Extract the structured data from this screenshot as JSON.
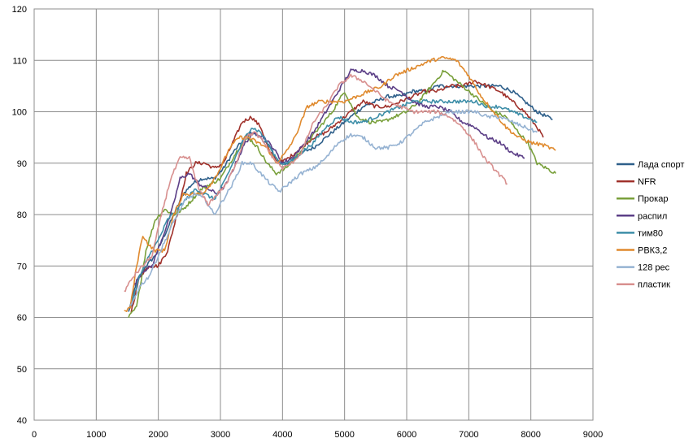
{
  "chart_data": {
    "type": "line",
    "title": "",
    "xlabel": "",
    "ylabel": "",
    "xlim": [
      0,
      9000
    ],
    "ylim": [
      40,
      120
    ],
    "x_ticks": [
      "0",
      "1000",
      "2000",
      "3000",
      "4000",
      "5000",
      "6000",
      "7000",
      "8000",
      "9000"
    ],
    "y_ticks": [
      "40",
      "50",
      "60",
      "70",
      "80",
      "90",
      "100",
      "110",
      "120"
    ],
    "grid": true,
    "legend_position": "right",
    "series": [
      {
        "name": "Лада спорт",
        "color": "#2e5f8a",
        "x": [
          1520,
          1650,
          1800,
          1950,
          2100,
          2250,
          2400,
          2550,
          2700,
          2900,
          3050,
          3200,
          3400,
          3500,
          3650,
          3800,
          3950,
          4100,
          4300,
          4500,
          4700,
          4900,
          5100,
          5300,
          5500,
          5700,
          5900,
          6100,
          6300,
          6500,
          6700,
          6900,
          7100,
          7300,
          7500,
          7700,
          7900,
          8100,
          8350
        ],
        "y": [
          61,
          67,
          70,
          72,
          76,
          80,
          84,
          86,
          87,
          87,
          89,
          92,
          95,
          96,
          95,
          93,
          90,
          90,
          92,
          93,
          95,
          97,
          99,
          101,
          102,
          103,
          103,
          104,
          104,
          105,
          105,
          105,
          105,
          105,
          105,
          104,
          102,
          100,
          98.5
        ]
      },
      {
        "name": "NFR",
        "color": "#a0312b",
        "x": [
          1560,
          1700,
          1850,
          2000,
          2150,
          2300,
          2450,
          2600,
          2750,
          2900,
          3050,
          3200,
          3350,
          3500,
          3650,
          3800,
          3950,
          4100,
          4300,
          4500,
          4700,
          4900,
          5100,
          5300,
          5500,
          5700,
          5900,
          6100,
          6300,
          6500,
          6700,
          6900,
          7100,
          7300,
          7500,
          7700,
          7900,
          8100,
          8200
        ],
        "y": [
          61,
          68,
          70,
          70,
          73,
          80,
          88,
          90,
          90,
          89,
          90,
          94,
          98,
          99,
          97,
          92,
          90,
          91,
          93,
          95,
          96,
          98,
          100,
          102,
          101,
          101,
          102,
          103,
          104,
          104,
          105,
          105,
          106,
          105,
          104,
          102,
          100,
          97,
          95
        ]
      },
      {
        "name": "Прокар",
        "color": "#79a03b",
        "x": [
          1520,
          1650,
          1800,
          1950,
          2100,
          2250,
          2400,
          2550,
          2700,
          2850,
          3000,
          3150,
          3300,
          3450,
          3600,
          3750,
          3900,
          4050,
          4200,
          4400,
          4600,
          4800,
          5000,
          5200,
          5400,
          5600,
          5800,
          6000,
          6200,
          6400,
          6600,
          6800,
          7000,
          7200,
          7400,
          7600,
          7800,
          7950,
          8100,
          8250,
          8400
        ],
        "y": [
          60,
          62,
          73,
          79,
          81,
          80,
          81,
          83,
          85,
          86,
          87,
          90,
          93,
          95,
          93,
          90,
          88,
          89,
          91,
          94,
          97,
          100,
          104,
          99,
          98,
          98,
          99,
          100,
          102,
          105,
          108,
          106,
          104,
          102,
          100,
          99,
          96,
          94,
          90,
          89,
          88
        ]
      },
      {
        "name": "распил",
        "color": "#5c3f87",
        "x": [
          1600,
          1750,
          1900,
          2050,
          2200,
          2350,
          2500,
          2650,
          2800,
          2950,
          3100,
          3250,
          3400,
          3550,
          3700,
          3850,
          4000,
          4150,
          4300,
          4500,
          4700,
          4900,
          5100,
          5300,
          5500,
          5700,
          5900,
          6100,
          6300,
          6500,
          6700,
          6900,
          7100,
          7300,
          7500,
          7700,
          7900
        ],
        "y": [
          66,
          69,
          70,
          75,
          80,
          87,
          88,
          86,
          85,
          84,
          86,
          90,
          94,
          96,
          95,
          93,
          90,
          91,
          93,
          96,
          100,
          104,
          108,
          108,
          107,
          105,
          104,
          102,
          101,
          101,
          100,
          98,
          97,
          95,
          94,
          92,
          91
        ]
      },
      {
        "name": "тим80",
        "color": "#3d8ea8",
        "x": [
          1550,
          1700,
          1850,
          2000,
          2150,
          2300,
          2450,
          2600,
          2750,
          2900,
          3050,
          3200,
          3350,
          3500,
          3650,
          3800,
          3950,
          4100,
          4300,
          4500,
          4700,
          4900,
          5100,
          5300,
          5500,
          5700,
          5900,
          6100,
          6300,
          6500,
          6700,
          6900,
          7100,
          7300,
          7500,
          7700,
          7900,
          8100
        ],
        "y": [
          62,
          68,
          72,
          75,
          79,
          81,
          83,
          85,
          84,
          83,
          86,
          90,
          94,
          97,
          96,
          93,
          90,
          90,
          92,
          94,
          97,
          99,
          98,
          98,
          99,
          100,
          101,
          102,
          102,
          102,
          102,
          102,
          102,
          101,
          101,
          100,
          99,
          98
        ]
      },
      {
        "name": "РВК3,2",
        "color": "#e08a2e",
        "x": [
          1450,
          1550,
          1650,
          1750,
          1850,
          1950,
          2100,
          2250,
          2400,
          2550,
          2700,
          2850,
          3000,
          3150,
          3300,
          3450,
          3600,
          3750,
          3900,
          4050,
          4200,
          4400,
          4600,
          4800,
          5000,
          5200,
          5400,
          5600,
          5800,
          6000,
          6200,
          6400,
          6600,
          6800,
          7000,
          7200,
          7400,
          7600,
          7800,
          8000,
          8200,
          8400
        ],
        "y": [
          61,
          62,
          70,
          76,
          74,
          73,
          73,
          80,
          84,
          84,
          84,
          86,
          89,
          93,
          95,
          95,
          94,
          93,
          90,
          92,
          95,
          101,
          102,
          102,
          102,
          103,
          104,
          105,
          107,
          108,
          109,
          110,
          110.5,
          110,
          107,
          103,
          100,
          97,
          95,
          94,
          93.5,
          92.5
        ]
      },
      {
        "name": "128 рес",
        "color": "#95b2d2",
        "x": [
          1550,
          1700,
          1850,
          2000,
          2150,
          2300,
          2450,
          2600,
          2750,
          2900,
          3050,
          3200,
          3350,
          3500,
          3650,
          3800,
          3950,
          4100,
          4300,
          4500,
          4700,
          4900,
          5100,
          5300,
          5500,
          5700,
          5900,
          6100,
          6300,
          6500,
          6700,
          6900,
          7100,
          7300,
          7500,
          7700,
          7900,
          8100
        ],
        "y": [
          62,
          66,
          68,
          72,
          76,
          80,
          83,
          84,
          83,
          80,
          83,
          86,
          90,
          90,
          88,
          86,
          84.5,
          86,
          88,
          89,
          91,
          94,
          95.5,
          95,
          93,
          93,
          94,
          96,
          98,
          99,
          100,
          100,
          100,
          99,
          99,
          98,
          97,
          96
        ]
      },
      {
        "name": "пластик",
        "color": "#d8908f",
        "x": [
          1450,
          1600,
          1750,
          1900,
          2050,
          2200,
          2350,
          2500,
          2650,
          2800,
          2950,
          3100,
          3250,
          3400,
          3550,
          3700,
          3850,
          4000,
          4150,
          4300,
          4500,
          4700,
          4900,
          5100,
          5300,
          5500,
          5700,
          5900,
          6100,
          6300,
          6500,
          6700,
          6900,
          7100,
          7250,
          7400,
          7550,
          7620
        ],
        "y": [
          65,
          68,
          70,
          72,
          80,
          87,
          91,
          91,
          85,
          82,
          84,
          86,
          90,
          95,
          96,
          94,
          91,
          89,
          90,
          92,
          98,
          101,
          105,
          107,
          106,
          104,
          102,
          101,
          100,
          100,
          100,
          99,
          97,
          94,
          91,
          89,
          87,
          86
        ]
      }
    ]
  }
}
